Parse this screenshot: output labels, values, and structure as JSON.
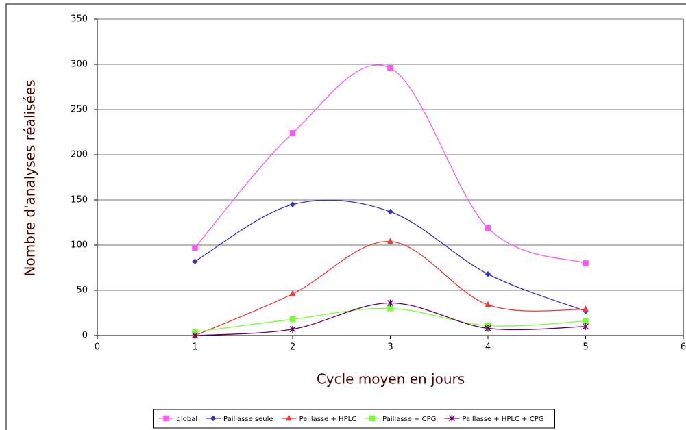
{
  "chart_data": {
    "type": "line",
    "smooth": true,
    "xlabel": "Cycle moyen en jours",
    "ylabel": "Nombre d'analyses réalisées",
    "x": [
      1,
      2,
      3,
      4,
      5
    ],
    "series": [
      {
        "name": "global",
        "color": "#ff55ff",
        "marker": "square",
        "values": [
          97,
          224,
          296,
          119,
          80
        ]
      },
      {
        "name": "Paillasse seule",
        "color": "#3333cc",
        "marker": "diamond",
        "values": [
          82,
          145,
          137,
          68,
          27
        ]
      },
      {
        "name": "Paillasse + HPLC",
        "color": "#ff3333",
        "marker": "triangle",
        "values": [
          0,
          46,
          104,
          34,
          29
        ]
      },
      {
        "name": "Paillasse + CPG",
        "color": "#77ff33",
        "marker": "square",
        "values": [
          4,
          18,
          30,
          11,
          16
        ]
      },
      {
        "name": "Paillasse + HPLC + CPG",
        "color": "#660066",
        "marker": "star",
        "values": [
          0,
          7,
          36,
          8,
          10
        ]
      }
    ],
    "xlim": [
      0,
      6
    ],
    "xticks": [
      0,
      1,
      2,
      3,
      4,
      5,
      6
    ],
    "ylim": [
      0,
      350
    ],
    "yticks": [
      0,
      50,
      100,
      150,
      200,
      250,
      300,
      350
    ],
    "grid": true,
    "legend": "bottom"
  }
}
